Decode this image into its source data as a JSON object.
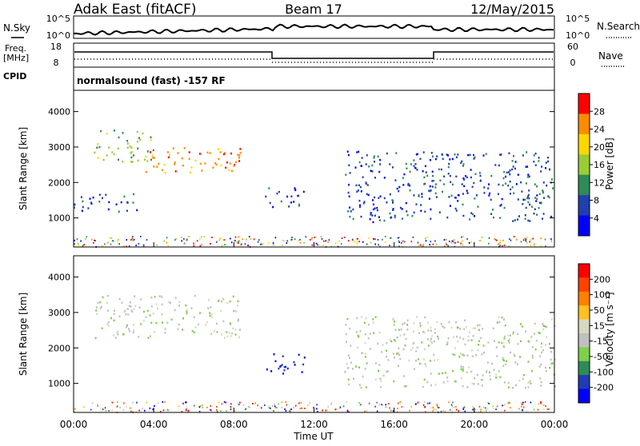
{
  "header": {
    "station": "Adak East (fitACF)",
    "beam": "Beam 17",
    "date": "12/May/2015"
  },
  "side_labels": {
    "nsky": "N.Sky",
    "freq": "Freq.",
    "freq_unit": "[MHz]",
    "cpid": "CPID",
    "nsearch": "N.Search",
    "nave": "Nave"
  },
  "axis_ticks": {
    "noise_top": "10^5",
    "noise_bottom": "10^0",
    "freq_top": "18",
    "freq_bottom": "8",
    "nave_top": "60",
    "nave_bottom": "0"
  },
  "cpid_text": "normalsound (fast) -157 RF",
  "colors": {
    "power_scale": [
      "#0000ff",
      "#2040b0",
      "#2e8b57",
      "#9acd32",
      "#ffd700",
      "#ff8c00",
      "#ff0000"
    ],
    "velocity_scale": [
      "#0000ff",
      "#1e3cb4",
      "#2e8b57",
      "#7fd04a",
      "#c0c0c0",
      "#d8d8c0",
      "#ffc020",
      "#ff8000",
      "#ff4000",
      "#ff0000"
    ]
  },
  "chart_data": [
    {
      "type": "heatmap",
      "name": "power",
      "xlabel": "",
      "ylabel": "Slant Range [km]",
      "x_ticks": [
        "00:00",
        "04:00",
        "08:00",
        "12:00",
        "16:00",
        "20:00",
        "00:00"
      ],
      "y_ticks": [
        1000,
        2000,
        3000,
        4000
      ],
      "ylim": [
        180,
        4600
      ],
      "colorbar": {
        "label": "Power [dB]",
        "ticks": [
          "28",
          "24",
          "20",
          "16",
          "12",
          "8",
          "4"
        ]
      },
      "features": [
        {
          "t_start": 0.0,
          "t_end": 3.3,
          "r_start": 1200,
          "r_end": 1700,
          "level": 1
        },
        {
          "t_start": 1.0,
          "t_end": 4.0,
          "r_start": 2600,
          "r_end": 3500,
          "level": 3
        },
        {
          "t_start": 3.5,
          "t_end": 8.3,
          "r_start": 2300,
          "r_end": 3000,
          "level": 5
        },
        {
          "t_start": 9.5,
          "t_end": 11.5,
          "r_start": 1300,
          "r_end": 1900,
          "level": 1
        },
        {
          "t_start": 13.5,
          "t_end": 24.0,
          "r_start": 900,
          "r_end": 2900,
          "level": 1
        }
      ]
    },
    {
      "type": "heatmap",
      "name": "velocity",
      "xlabel": "Time UT",
      "ylabel": "Slant Range [km]",
      "x_ticks": [
        "00:00",
        "04:00",
        "08:00",
        "12:00",
        "16:00",
        "20:00",
        "00:00"
      ],
      "y_ticks": [
        1000,
        2000,
        3000,
        4000
      ],
      "ylim": [
        180,
        4600
      ],
      "colorbar": {
        "label": "Velocity [m s⁻¹]",
        "ticks": [
          "200",
          "100",
          "50",
          "15",
          "-15",
          "-50",
          "-100",
          "-200"
        ]
      },
      "features": [
        {
          "t_start": 1.0,
          "t_end": 8.3,
          "r_start": 2300,
          "r_end": 3500,
          "level": 4
        },
        {
          "t_start": 9.6,
          "t_end": 11.6,
          "r_start": 1300,
          "r_end": 1900,
          "level": 0
        },
        {
          "t_start": 13.5,
          "t_end": 24.0,
          "r_start": 900,
          "r_end": 2900,
          "level": 4
        }
      ]
    }
  ]
}
